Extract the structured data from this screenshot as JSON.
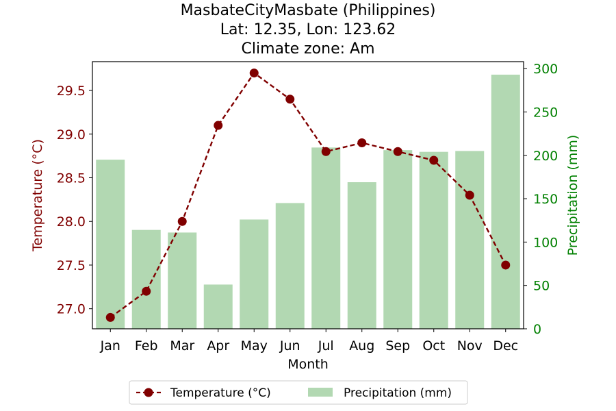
{
  "chart_data": {
    "type": "bar",
    "title_lines": [
      "MasbateCityMasbate (Philippines)",
      "Lat: 12.35, Lon: 123.62",
      "Climate zone: Am"
    ],
    "xlabel": "Month",
    "ylabel_left": "Temperature (°C)",
    "ylabel_right": "Precipitation (mm)",
    "categories": [
      "Jan",
      "Feb",
      "Mar",
      "Apr",
      "May",
      "Jun",
      "Jul",
      "Aug",
      "Sep",
      "Oct",
      "Nov",
      "Dec"
    ],
    "temperature": {
      "name": "Temperature (°C)",
      "type": "line",
      "values": [
        26.9,
        27.2,
        28.0,
        29.1,
        29.7,
        29.4,
        28.8,
        28.9,
        28.8,
        28.7,
        28.3,
        27.5
      ],
      "ylim": [
        26.77,
        29.83
      ],
      "ticks": [
        "27.0",
        "27.5",
        "28.0",
        "28.5",
        "29.0",
        "29.5"
      ],
      "color": "#800000"
    },
    "precipitation": {
      "name": "Precipitation (mm)",
      "type": "bar",
      "values": [
        195,
        114,
        111,
        51,
        126,
        145,
        209,
        169,
        206,
        204,
        205,
        293
      ],
      "ylim": [
        0,
        308
      ],
      "ticks": [
        "0",
        "50",
        "100",
        "150",
        "200",
        "250",
        "300"
      ],
      "color": "#b2d8b2"
    },
    "right_axis_color": "#008000",
    "legend_position": "bottom-center"
  }
}
